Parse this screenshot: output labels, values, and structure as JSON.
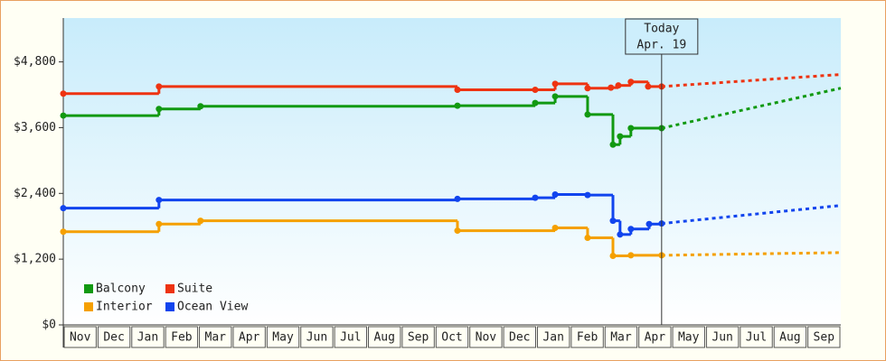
{
  "chart_data": {
    "type": "step-line",
    "categories": [
      "Nov",
      "Dec",
      "Jan",
      "Feb",
      "Mar",
      "Apr",
      "May",
      "Jun",
      "Jul",
      "Aug",
      "Sep",
      "Oct",
      "Nov",
      "Dec",
      "Jan",
      "Feb",
      "Mar",
      "Apr",
      "May",
      "Jun",
      "Jul",
      "Aug",
      "Sep"
    ],
    "xlim": [
      0,
      23
    ],
    "ylim": [
      0,
      5600
    ],
    "yticks": [
      {
        "value": 0,
        "label": "$0"
      },
      {
        "value": 1200,
        "label": "$1,200"
      },
      {
        "value": 2400,
        "label": "$2,400"
      },
      {
        "value": 3600,
        "label": "$3,600"
      },
      {
        "value": 4800,
        "label": "$4,800"
      }
    ],
    "legend": "lower left",
    "annotation": {
      "lines": [
        "Today",
        "Apr. 19"
      ],
      "x": 17.7
    },
    "series": [
      {
        "name": "Balcony",
        "color": "#119911",
        "x": [
          0,
          2.83,
          4.06,
          11.66,
          13.96,
          14.55,
          15.51,
          16.26,
          16.47,
          16.79,
          17.7
        ],
        "values": [
          3820,
          3940,
          3990,
          4000,
          4050,
          4170,
          3840,
          3290,
          3440,
          3590,
          3590
        ],
        "forecast": {
          "x": [
            17.7,
            23
          ],
          "values": [
            3590,
            4320
          ]
        }
      },
      {
        "name": "Suite",
        "color": "#ee3311",
        "x": [
          0,
          2.83,
          11.66,
          13.96,
          14.55,
          15.51,
          16.2,
          16.42,
          16.79,
          17.3,
          17.7
        ],
        "values": [
          4220,
          4350,
          4290,
          4290,
          4400,
          4320,
          4330,
          4370,
          4435,
          4350,
          4350
        ],
        "forecast": {
          "x": [
            17.7,
            23
          ],
          "values": [
            4350,
            4570
          ]
        }
      },
      {
        "name": "Interior",
        "color": "#f5a000",
        "x": [
          0,
          2.83,
          4.06,
          11.66,
          14.55,
          15.51,
          16.26,
          16.79,
          17.7
        ],
        "values": [
          1700,
          1840,
          1900,
          1720,
          1770,
          1590,
          1260,
          1270,
          1270
        ],
        "forecast": {
          "x": [
            17.7,
            23
          ],
          "values": [
            1270,
            1320
          ]
        }
      },
      {
        "name": "Ocean View",
        "color": "#1144ee",
        "x": [
          0,
          2.83,
          11.66,
          13.96,
          14.55,
          15.51,
          16.26,
          16.47,
          16.79,
          17.33,
          17.7
        ],
        "values": [
          2130,
          2280,
          2300,
          2320,
          2380,
          2370,
          1900,
          1650,
          1750,
          1840,
          1850
        ],
        "forecast": {
          "x": [
            17.7,
            23
          ],
          "values": [
            1850,
            2180
          ]
        }
      }
    ]
  }
}
